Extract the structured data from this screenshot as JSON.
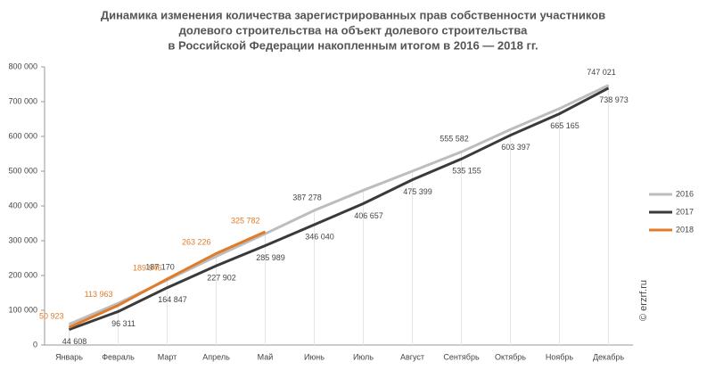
{
  "chart_data": {
    "type": "line",
    "title": [
      "Динамика изменения количества зарегистрированных прав собственности участников",
      "долевого строительства на объект долевого строительства",
      "в Российской Федерации накопленным итогом в 2016 — 2018 гг."
    ],
    "categories": [
      "Январь",
      "Февраль",
      "Март",
      "Апрель",
      "Май",
      "Июнь",
      "Июль",
      "Август",
      "Сентябрь",
      "Октябрь",
      "Ноябрь",
      "Декабрь"
    ],
    "series": [
      {
        "name": "2016",
        "color": "#bdbdbd",
        "values": [
          60000,
          120000,
          187170,
          255000,
          320000,
          387278,
          445000,
          500000,
          555582,
          620000,
          680000,
          747021
        ],
        "value_labels": [
          null,
          null,
          "187 170",
          null,
          null,
          "387 278",
          null,
          null,
          "555 582",
          null,
          null,
          "747 021"
        ]
      },
      {
        "name": "2017",
        "color": "#3a3a3a",
        "values": [
          44608,
          96311,
          164847,
          227902,
          285989,
          346040,
          406657,
          475399,
          535155,
          603397,
          665165,
          738973
        ],
        "value_labels": [
          "44 608",
          "96 311",
          "164 847",
          "227 902",
          "285 989",
          "346 040",
          "406 657",
          "475 399",
          "535 155",
          "603 397",
          "665 165",
          "738 973"
        ]
      },
      {
        "name": "2018",
        "color": "#e07b2a",
        "values": [
          50923,
          113963,
          189946,
          263226,
          325782,
          null,
          null,
          null,
          null,
          null,
          null,
          null
        ],
        "value_labels": [
          "50 923",
          "113 963",
          "189 946",
          "263 226",
          "325 782",
          null,
          null,
          null,
          null,
          null,
          null,
          null
        ]
      }
    ],
    "ylim": [
      0,
      800000
    ],
    "yticks": [
      0,
      {
        "value": 100000,
        "label": "100 000"
      },
      {
        "value": 200000,
        "label": "200 000"
      },
      {
        "value": 300000,
        "label": "300 000"
      },
      {
        "value": 400000,
        "label": "400 000"
      },
      {
        "value": 500000,
        "label": "500 000"
      },
      {
        "value": 600000,
        "label": "600 000"
      },
      {
        "value": 700000,
        "label": "700 000"
      },
      {
        "value": 800000,
        "label": "800 000"
      }
    ],
    "legend": "right",
    "watermark": "© erzrf.ru"
  }
}
